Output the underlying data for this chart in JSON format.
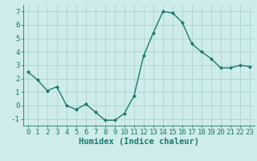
{
  "x": [
    0,
    1,
    2,
    3,
    4,
    5,
    6,
    7,
    8,
    9,
    10,
    11,
    12,
    13,
    14,
    15,
    16,
    17,
    18,
    19,
    20,
    21,
    22,
    23
  ],
  "y": [
    2.5,
    1.9,
    1.1,
    1.4,
    0.0,
    -0.3,
    0.1,
    -0.5,
    -1.1,
    -1.1,
    -0.6,
    0.7,
    3.7,
    5.4,
    7.0,
    6.9,
    6.2,
    4.6,
    4.0,
    3.5,
    2.8,
    2.8,
    3.0,
    2.9
  ],
  "line_color": "#1a7a6e",
  "marker": "D",
  "marker_size": 2.0,
  "bg_color": "#ceecea",
  "grid_color": "#aed4d1",
  "xlabel": "Humidex (Indice chaleur)",
  "ylim": [
    -1.5,
    7.5
  ],
  "xlim": [
    -0.5,
    23.5
  ],
  "yticks": [
    -1,
    0,
    1,
    2,
    3,
    4,
    5,
    6,
    7
  ],
  "xticks": [
    0,
    1,
    2,
    3,
    4,
    5,
    6,
    7,
    8,
    9,
    10,
    11,
    12,
    13,
    14,
    15,
    16,
    17,
    18,
    19,
    20,
    21,
    22,
    23
  ],
  "tick_labelsize": 6.5,
  "xlabel_fontsize": 7.5,
  "xlabel_fontweight": "bold",
  "line_width": 1.0
}
